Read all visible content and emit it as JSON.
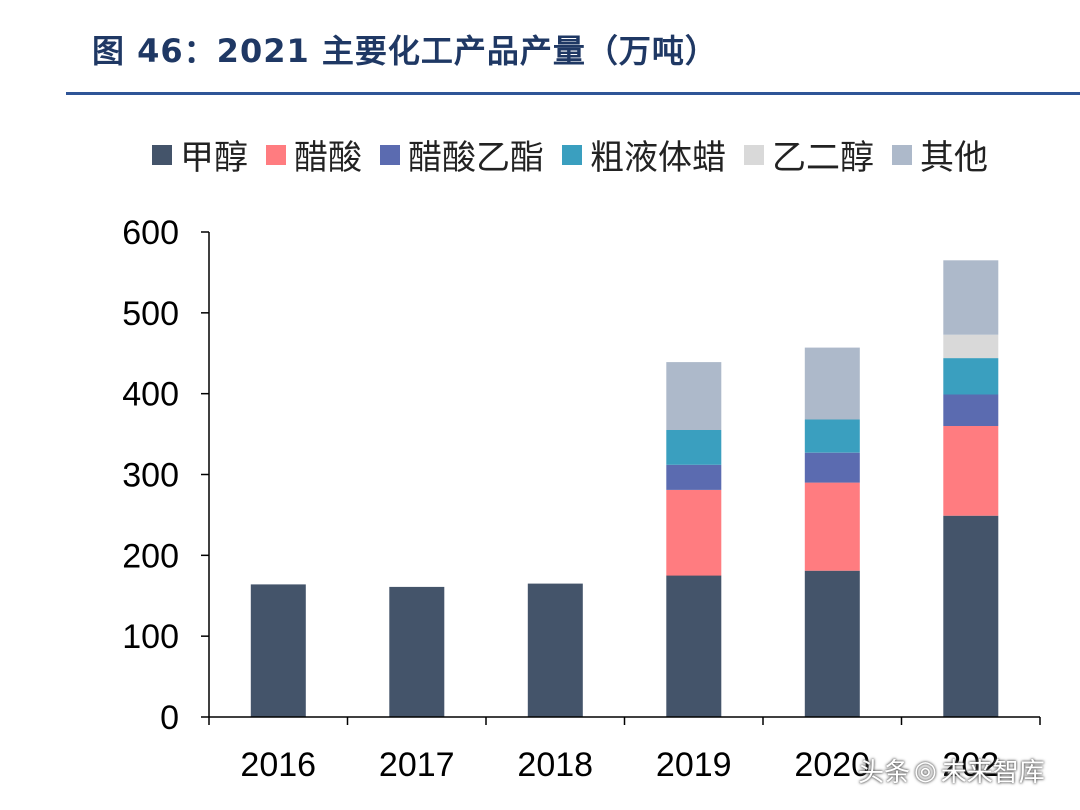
{
  "figure": {
    "title": "图 46：2021 主要化工产品产量（万吨）"
  },
  "watermark": {
    "left_text": "头条",
    "icon": "wechat-icon",
    "right_text": "未来智库"
  },
  "chart_data": {
    "type": "bar",
    "stacked": true,
    "title": "",
    "xlabel": "",
    "ylabel": "",
    "categories": [
      "2016",
      "2017",
      "2018",
      "2019",
      "2020",
      "2021"
    ],
    "category_labels": [
      "2016",
      "2017",
      "2018",
      "2019",
      "2020",
      "202"
    ],
    "ylim": [
      0,
      600
    ],
    "yticks": [
      0,
      100,
      200,
      300,
      400,
      500,
      600
    ],
    "grid": false,
    "legend_position": "top",
    "series": [
      {
        "name": "甲醇",
        "color": "#44546a",
        "values": [
          164,
          161,
          165,
          175,
          181,
          249
        ]
      },
      {
        "name": "醋酸",
        "color": "#ff7c80",
        "values": [
          0,
          0,
          0,
          106,
          109,
          111
        ]
      },
      {
        "name": "醋酸乙酯",
        "color": "#5b6bb0",
        "values": [
          0,
          0,
          0,
          31,
          37,
          39
        ]
      },
      {
        "name": "粗液体蜡",
        "color": "#3a9fbf",
        "values": [
          0,
          0,
          0,
          43,
          41,
          45
        ]
      },
      {
        "name": "乙二醇",
        "color": "#d9d9d9",
        "values": [
          0,
          0,
          0,
          0,
          0,
          29
        ]
      },
      {
        "name": "其他",
        "color": "#adb9ca",
        "values": [
          0,
          0,
          0,
          84,
          89,
          92
        ]
      }
    ]
  }
}
